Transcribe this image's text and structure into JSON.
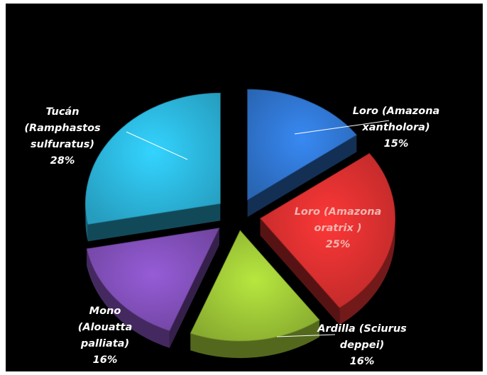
{
  "chart_data": {
    "type": "pie",
    "exploded": true,
    "three_d": true,
    "slices": [
      {
        "label_lines": [
          "Loro (Amazona",
          "xantholora)"
        ],
        "value": 15,
        "value_label": "15%",
        "color": "#2e70c7",
        "label_color": "#ffffff"
      },
      {
        "label_lines": [
          "Loro (Amazona",
          "oratrix )"
        ],
        "value": 25,
        "value_label": "25%",
        "color": "#cf2d2d",
        "label_color": "#f2b5b0"
      },
      {
        "label_lines": [
          "Ardilla (Sciurus",
          "deppei)"
        ],
        "value": 16,
        "value_label": "16%",
        "color": "#96bd34",
        "label_color": "#ffffff"
      },
      {
        "label_lines": [
          "Mono",
          "(Alouatta",
          "palliata)"
        ],
        "value": 16,
        "value_label": "16%",
        "color": "#7b4bb0",
        "label_color": "#ffffff"
      },
      {
        "label_lines": [
          "Tucán",
          "(Ramphastos",
          "sulfuratus)"
        ],
        "value": 28,
        "value_label": "28%",
        "color": "#2aaed4",
        "label_color": "#ffffff"
      }
    ],
    "colors": {
      "plot_background": "#000000",
      "page_background": "#ffffff",
      "leader_line": "#ffffff"
    }
  }
}
